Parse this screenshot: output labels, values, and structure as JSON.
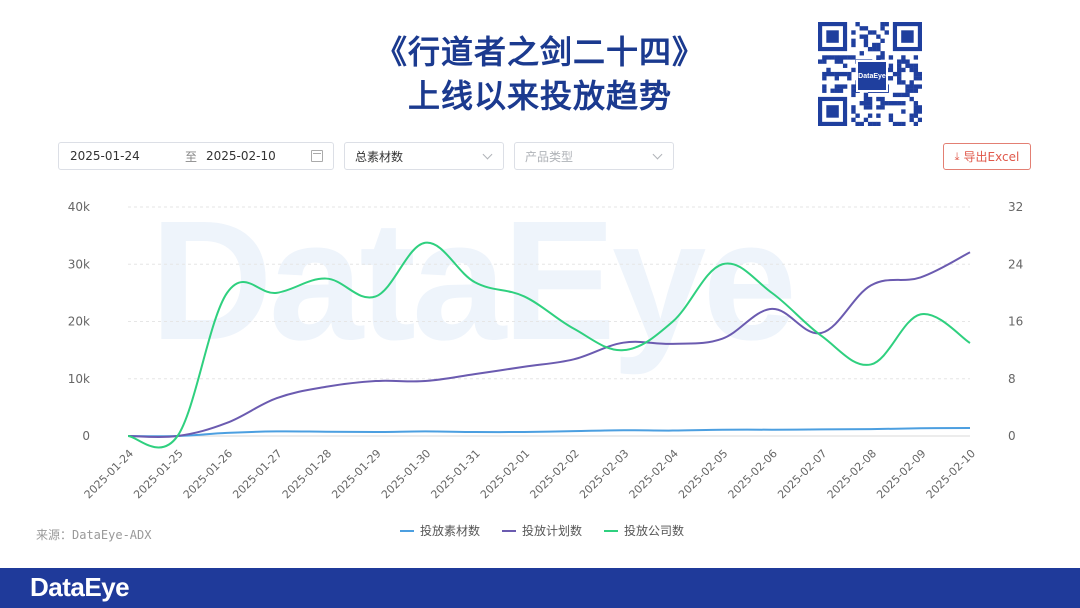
{
  "title_line1": "《行道者之剑二十四》",
  "title_line2": "上线以来投放趋势",
  "qr_logo_text": "DataEye",
  "controls": {
    "date_start": "2025-01-24",
    "date_sep": "至",
    "date_end": "2025-02-10",
    "metric_select": "总素材数",
    "type_placeholder": "产品类型",
    "export_label": "导出Excel"
  },
  "watermark": "DataEye",
  "source": "来源：DataEye-ADX",
  "footer_logo": "DataEye",
  "chart_data": {
    "type": "line",
    "categories": [
      "2025-01-24",
      "2025-01-25",
      "2025-01-26",
      "2025-01-27",
      "2025-01-28",
      "2025-01-29",
      "2025-01-30",
      "2025-01-31",
      "2025-02-01",
      "2025-02-02",
      "2025-02-03",
      "2025-02-04",
      "2025-02-05",
      "2025-02-06",
      "2025-02-07",
      "2025-02-08",
      "2025-02-09",
      "2025-02-10"
    ],
    "y_left": {
      "min": 0,
      "max": 40000,
      "ticks": [
        "0",
        "10k",
        "20k",
        "30k",
        "40k"
      ],
      "tick_values": [
        0,
        10000,
        20000,
        30000,
        40000
      ]
    },
    "y_right": {
      "min": 0,
      "max": 32,
      "ticks": [
        "0",
        "8",
        "16",
        "24",
        "32"
      ],
      "tick_values": [
        0,
        8,
        16,
        24,
        32
      ]
    },
    "grid": true,
    "legend_position": "bottom",
    "series": [
      {
        "name": "投放素材数",
        "axis": "left",
        "color": "#4c9fe0",
        "values": [
          0,
          0,
          550,
          800,
          750,
          700,
          800,
          700,
          700,
          850,
          1000,
          950,
          1100,
          1100,
          1150,
          1200,
          1350,
          1400
        ]
      },
      {
        "name": "投放计划数",
        "axis": "left",
        "color": "#6b5bb0",
        "values": [
          0,
          0,
          2300,
          6600,
          8600,
          9600,
          9600,
          10800,
          12100,
          13400,
          16300,
          16100,
          17000,
          22200,
          18000,
          26300,
          27700,
          32100
        ]
      },
      {
        "name": "投放公司数",
        "axis": "right",
        "color": "#2fd07f",
        "values": [
          0,
          0,
          20,
          20,
          22,
          19.5,
          27,
          21.5,
          19.5,
          15,
          12,
          16,
          24,
          20,
          14,
          10,
          17,
          13
        ]
      }
    ]
  }
}
